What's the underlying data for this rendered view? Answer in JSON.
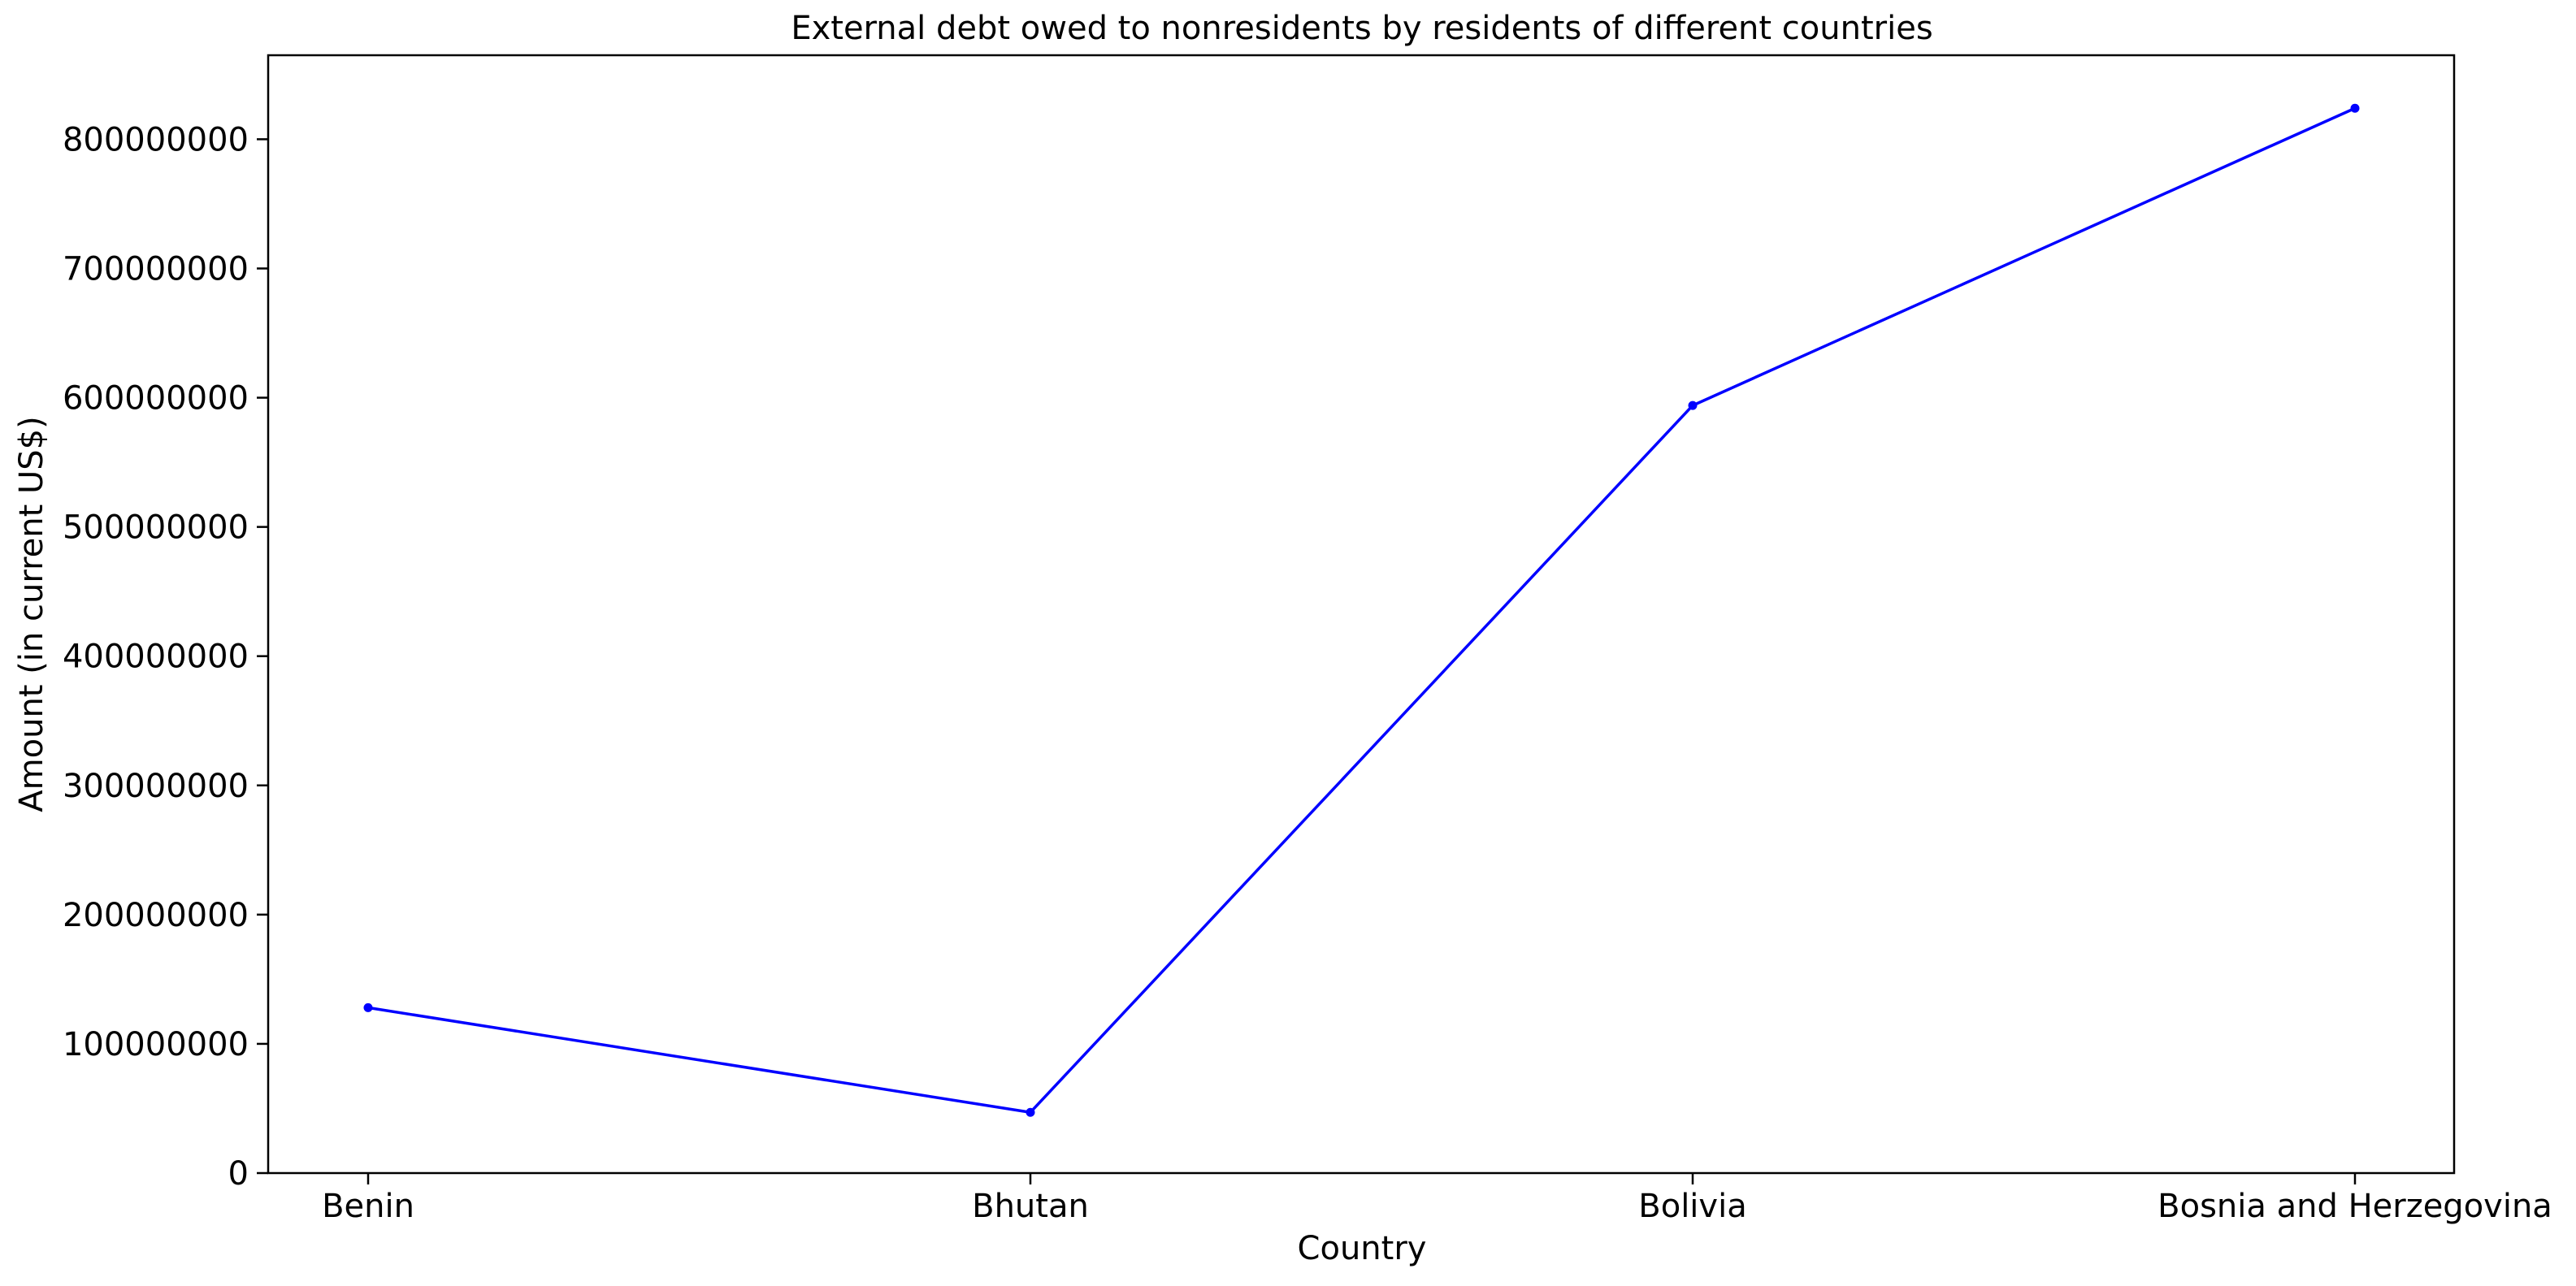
{
  "chart_data": {
    "type": "line",
    "title": "External debt owed to nonresidents by residents of different countries",
    "xlabel": "Country",
    "ylabel": "Amount (in current US$)",
    "categories": [
      "Benin",
      "Bhutan",
      "Bolivia",
      "Bosnia and Herzegovina"
    ],
    "series": [
      {
        "values": [
          128000000,
          47000000,
          594000000,
          824000000
        ]
      }
    ],
    "ylim": [
      0,
      865000000
    ],
    "yticks": [
      0,
      100000000,
      200000000,
      300000000,
      400000000,
      500000000,
      600000000,
      700000000,
      800000000
    ],
    "ytick_labels": [
      "0",
      "100000000",
      "200000000",
      "300000000",
      "400000000",
      "500000000",
      "600000000",
      "700000000",
      "800000000"
    ],
    "grid": false,
    "legend": "none",
    "marker": "dot",
    "colors": {
      "line": "#0000ff",
      "axes": "#000000",
      "background": "#ffffff"
    }
  }
}
